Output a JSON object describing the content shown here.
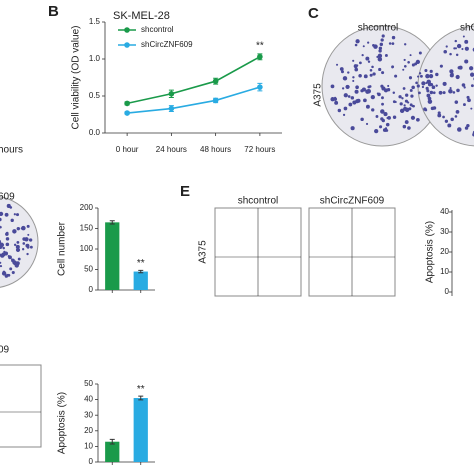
{
  "panels": {
    "b": "B",
    "c": "C",
    "e": "E"
  },
  "labels": {
    "top_left_x": "hours",
    "c_col1": "shcontrol",
    "c_col2": "shC",
    "c_row": "A375",
    "mid_left": "609",
    "e_col1": "shcontrol",
    "e_col2": "shCircZNF609",
    "e_row": "A375",
    "e_ylabel": "Apoptosis (%)",
    "e_yticks": [
      "40",
      "30",
      "20",
      "10",
      "0"
    ],
    "bottom_left": "09"
  },
  "chart_data": [
    {
      "type": "line",
      "title": "SK-MEL-28",
      "ylabel": "Cell viability (OD value)",
      "categories": [
        "0 hour",
        "24 hours",
        "48 hours",
        "72 hours"
      ],
      "series": [
        {
          "name": "shcontrol",
          "color": "#1a9a4a",
          "values": [
            0.4,
            0.53,
            0.7,
            1.03
          ],
          "errors": [
            0.02,
            0.05,
            0.04,
            0.04
          ]
        },
        {
          "name": "shCircZNF609",
          "color": "#29abe2",
          "values": [
            0.27,
            0.33,
            0.44,
            0.62
          ],
          "errors": [
            0.015,
            0.04,
            0.03,
            0.05
          ]
        }
      ],
      "ylim": [
        0,
        1.5
      ],
      "yticks": [
        {
          "value": 0,
          "label": "0.0"
        },
        {
          "value": 0.5,
          "label": "0.5"
        },
        {
          "value": 1,
          "label": "1.0"
        },
        {
          "value": 1.5,
          "label": "1.5"
        }
      ],
      "annotation": "**"
    },
    {
      "type": "bar",
      "ylabel": "Cell number",
      "categories": [
        null,
        null
      ],
      "values": [
        165,
        45
      ],
      "errors": [
        4,
        3
      ],
      "colors": [
        "#1a9a4a",
        "#29abe2"
      ],
      "ylim": [
        0,
        200
      ],
      "yticks": [
        0,
        50,
        100,
        150,
        200
      ],
      "annotation": "**"
    },
    {
      "type": "bar",
      "ylabel": "Apoptosis (%)",
      "categories": [
        null,
        null
      ],
      "values": [
        13,
        41
      ],
      "errors": [
        1.5,
        1.2
      ],
      "colors": [
        "#1a9a4a",
        "#29abe2"
      ],
      "ylim": [
        0,
        50
      ],
      "yticks": [
        0,
        10,
        20,
        30,
        40,
        50
      ],
      "annotation": "**"
    }
  ]
}
